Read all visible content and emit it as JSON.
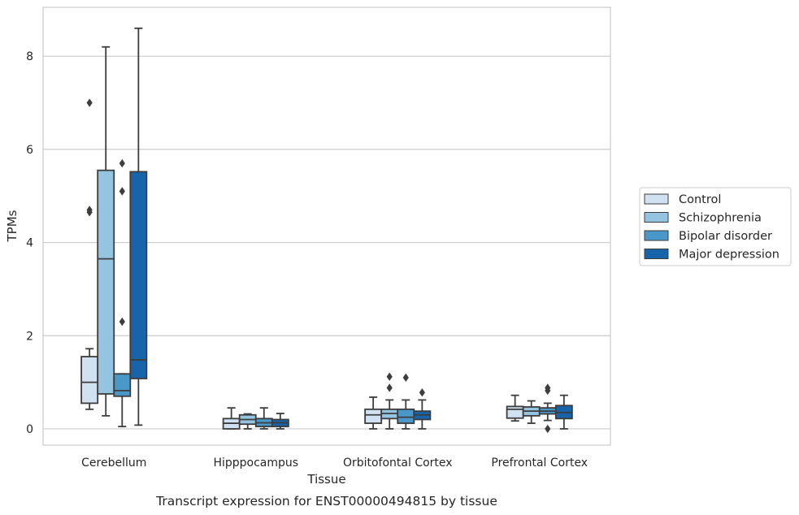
{
  "chart_data": {
    "type": "box",
    "title": "",
    "caption": "Transcript expression for ENST00000494815 by tissue",
    "xlabel": "Tissue",
    "ylabel": "TPMs",
    "ylim": [
      -0.35,
      9.05
    ],
    "yticks": [
      0,
      2,
      4,
      6,
      8
    ],
    "grid": "horizontal",
    "legend_position": "right",
    "categories": [
      "Cerebellum",
      "Hipppocampus",
      "Orbitofontal Cortex",
      "Prefrontal Cortex"
    ],
    "series": [
      {
        "name": "Control",
        "color": "#d0e1f2",
        "boxes": [
          {
            "whisker_low": 0.42,
            "q1": 0.55,
            "median": 1.0,
            "q3": 1.55,
            "whisker_high": 1.72,
            "outliers": [
              7.0,
              4.7,
              4.65
            ]
          },
          {
            "whisker_low": 0.0,
            "q1": 0.0,
            "median": 0.12,
            "q3": 0.22,
            "whisker_high": 0.45,
            "outliers": []
          },
          {
            "whisker_low": 0.0,
            "q1": 0.12,
            "median": 0.3,
            "q3": 0.42,
            "whisker_high": 0.68,
            "outliers": []
          },
          {
            "whisker_low": 0.17,
            "q1": 0.23,
            "median": 0.42,
            "q3": 0.48,
            "whisker_high": 0.72,
            "outliers": []
          }
        ]
      },
      {
        "name": "Schizophrenia",
        "color": "#94c4df",
        "boxes": [
          {
            "whisker_low": 0.28,
            "q1": 0.75,
            "median": 3.65,
            "q3": 5.55,
            "whisker_high": 8.2,
            "outliers": []
          },
          {
            "whisker_low": 0.0,
            "q1": 0.1,
            "median": 0.2,
            "q3": 0.3,
            "whisker_high": 0.32,
            "outliers": []
          },
          {
            "whisker_low": 0.0,
            "q1": 0.22,
            "median": 0.33,
            "q3": 0.42,
            "whisker_high": 0.62,
            "outliers": [
              1.12,
              0.88
            ]
          },
          {
            "whisker_low": 0.12,
            "q1": 0.28,
            "median": 0.38,
            "q3": 0.47,
            "whisker_high": 0.6,
            "outliers": []
          }
        ]
      },
      {
        "name": "Bipolar disorder",
        "color": "#4a98c9",
        "boxes": [
          {
            "whisker_low": 0.05,
            "q1": 0.7,
            "median": 0.82,
            "q3": 1.18,
            "whisker_high": 1.18,
            "outliers": [
              5.7,
              5.1,
              2.3
            ]
          },
          {
            "whisker_low": 0.0,
            "q1": 0.05,
            "median": 0.13,
            "q3": 0.22,
            "whisker_high": 0.45,
            "outliers": []
          },
          {
            "whisker_low": 0.0,
            "q1": 0.12,
            "median": 0.25,
            "q3": 0.42,
            "whisker_high": 0.62,
            "outliers": [
              1.1
            ]
          },
          {
            "whisker_low": 0.18,
            "q1": 0.32,
            "median": 0.38,
            "q3": 0.45,
            "whisker_high": 0.55,
            "outliers": [
              0.88,
              0.82,
              0.0
            ]
          }
        ]
      },
      {
        "name": "Major depression",
        "color": "#1764ab",
        "boxes": [
          {
            "whisker_low": 0.08,
            "q1": 1.08,
            "median": 1.48,
            "q3": 5.52,
            "whisker_high": 8.6,
            "outliers": []
          },
          {
            "whisker_low": 0.0,
            "q1": 0.05,
            "median": 0.13,
            "q3": 0.2,
            "whisker_high": 0.33,
            "outliers": []
          },
          {
            "whisker_low": 0.0,
            "q1": 0.2,
            "median": 0.3,
            "q3": 0.38,
            "whisker_high": 0.62,
            "outliers": [
              0.78
            ]
          },
          {
            "whisker_low": 0.0,
            "q1": 0.22,
            "median": 0.35,
            "q3": 0.5,
            "whisker_high": 0.72,
            "outliers": []
          }
        ]
      }
    ]
  }
}
